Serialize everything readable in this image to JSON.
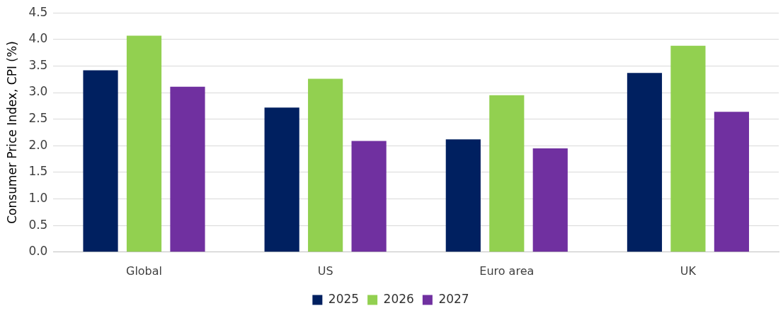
{
  "chart_data": {
    "type": "bar",
    "ylabel": "Consumer Price Index, CPI (%)",
    "categories": [
      "Global",
      "US",
      "Euro area",
      "UK"
    ],
    "series": [
      {
        "name": "2025",
        "color": "#002060",
        "values": [
          3.42,
          2.72,
          2.12,
          3.37
        ]
      },
      {
        "name": "2026",
        "color": "#92d050",
        "values": [
          4.07,
          3.26,
          2.95,
          3.88
        ]
      },
      {
        "name": "2027",
        "color": "#7030a0",
        "values": [
          3.11,
          2.09,
          1.95,
          2.64
        ]
      }
    ],
    "ylim": [
      0,
      4.5
    ],
    "yticks": [
      {
        "value": 0,
        "label": "0.0"
      },
      0.5,
      {
        "value": 1,
        "label": "1.0"
      },
      1.5,
      {
        "value": 2,
        "label": "2.0"
      },
      2.5,
      {
        "value": 3,
        "label": "3.0"
      },
      3.5,
      {
        "value": 4,
        "label": "4.0"
      },
      4.5
    ],
    "grid": "y",
    "legend": "bottom"
  }
}
